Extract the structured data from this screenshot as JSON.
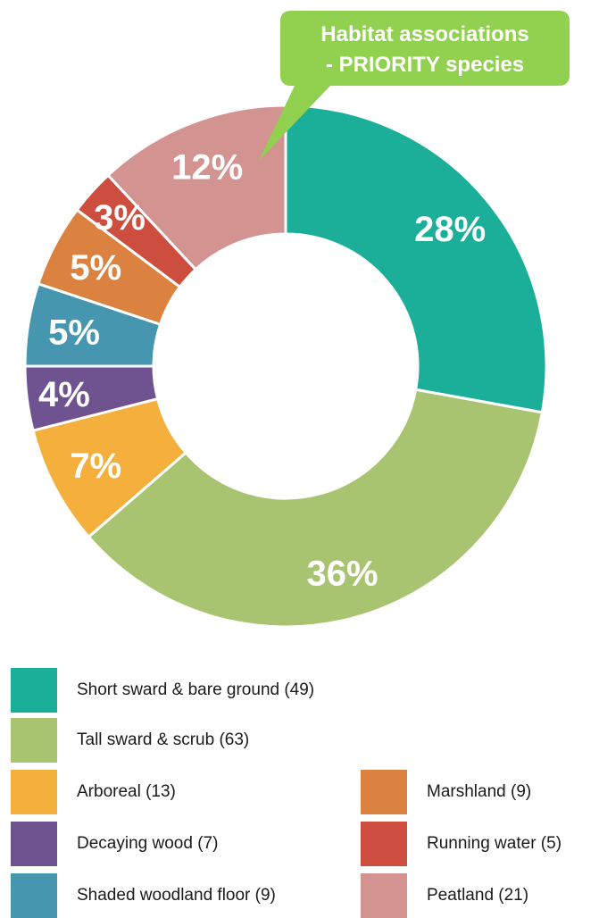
{
  "chart_data": {
    "type": "pie",
    "title": "Habitat associations - PRIORITY species",
    "title_lines": [
      "Habitat associations",
      "- PRIORITY species"
    ],
    "title_color": "#92D050",
    "slices": [
      {
        "label": "Short sward & bare ground (49)",
        "value": 49,
        "percent_label": "28%",
        "color": "#1BAE98"
      },
      {
        "label": "Tall sward & scrub (63)",
        "value": 63,
        "percent_label": "36%",
        "color": "#A9C470"
      },
      {
        "label": "Arboreal (13)",
        "value": 13,
        "percent_label": "7%",
        "color": "#F4AF3C"
      },
      {
        "label": "Decaying wood (7)",
        "value": 7,
        "percent_label": "4%",
        "color": "#6E5390"
      },
      {
        "label": "Shaded woodland floor (9)",
        "value": 9,
        "percent_label": "5%",
        "color": "#4596AE"
      },
      {
        "label": "Marshland (9)",
        "value": 9,
        "percent_label": "5%",
        "color": "#DB8240"
      },
      {
        "label": "Running water (5)",
        "value": 5,
        "percent_label": "3%",
        "color": "#CD4D3E"
      },
      {
        "label": "Peatland (21)",
        "value": 21,
        "percent_label": "12%",
        "color": "#D29391"
      }
    ],
    "legend_placement": "bottom"
  }
}
